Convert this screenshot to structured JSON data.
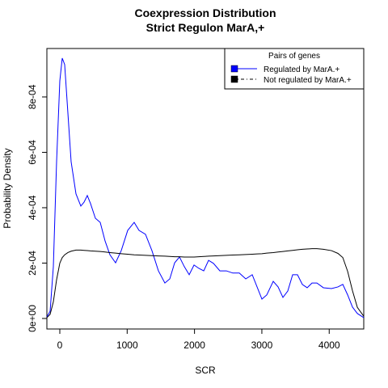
{
  "chart_data": {
    "type": "line",
    "title": "Coexpression Distribution",
    "subtitle": "Strict Regulon MarA,+",
    "x_label": "SCR",
    "y_label": "Probability Density",
    "x": [
      -192,
      -144,
      -96,
      -48,
      0,
      36,
      72,
      120,
      168,
      240,
      312,
      360,
      408,
      456,
      528,
      600,
      672,
      744,
      828,
      912,
      1008,
      1104,
      1176,
      1272,
      1368,
      1464,
      1560,
      1633,
      1705,
      1777,
      1849,
      1921,
      1993,
      2065,
      2137,
      2209,
      2281,
      2377,
      2473,
      2569,
      2665,
      2761,
      2857,
      2929,
      3001,
      3073,
      3169,
      3241,
      3313,
      3385,
      3457,
      3529,
      3601,
      3673,
      3745,
      3817,
      3914,
      4034,
      4130,
      4202,
      4274,
      4346,
      4418,
      4513
    ],
    "series": [
      {
        "name": "Regulated by  MarA.+",
        "color": "#0000ff",
        "line_style": "solid",
        "values": [
          6e-06,
          2.6e-05,
          0.000187,
          0.000566,
          0.000858,
          0.00094,
          0.000917,
          0.000742,
          0.000566,
          0.00045,
          0.000406,
          0.00042,
          0.000444,
          0.000415,
          0.000362,
          0.000347,
          0.00028,
          0.00023,
          0.000201,
          0.000245,
          0.000318,
          0.000347,
          0.000318,
          0.000304,
          0.000245,
          0.000172,
          0.000128,
          0.000143,
          0.000201,
          0.000222,
          0.000187,
          0.000158,
          0.000193,
          0.000181,
          0.000172,
          0.00021,
          0.000199,
          0.000172,
          0.000172,
          0.000164,
          0.000164,
          0.000143,
          0.000158,
          0.000114,
          7e-05,
          8.5e-05,
          0.000134,
          0.000114,
          7.6e-05,
          9.9e-05,
          0.000158,
          0.000158,
          0.000123,
          0.000111,
          0.000128,
          0.000128,
          0.000111,
          0.000108,
          0.000114,
          0.000123,
          8.5e-05,
          4.1e-05,
          1.8e-05,
          3e-06
        ]
      },
      {
        "name": "Not regulated by  MarA.+",
        "color": "#000000",
        "line_style": "dotdash",
        "values": [
          3e-06,
          1.5e-05,
          6e-05,
          0.00014,
          0.0002,
          0.00022,
          0.00023,
          0.000238,
          0.000243,
          0.000247,
          0.000247,
          0.000246,
          0.000245,
          0.000244,
          0.000243,
          0.000242,
          0.00024,
          0.000238,
          0.000236,
          0.000234,
          0.000232,
          0.00023,
          0.000229,
          0.000228,
          0.000227,
          0.000226,
          0.000225,
          0.000224,
          0.000223,
          0.000223,
          0.000222,
          0.000222,
          0.000222,
          0.000223,
          0.000224,
          0.000225,
          0.000226,
          0.000227,
          0.000228,
          0.000229,
          0.00023,
          0.000231,
          0.000232,
          0.000233,
          0.000234,
          0.000236,
          0.000238,
          0.00024,
          0.000242,
          0.000244,
          0.000246,
          0.000248,
          0.00025,
          0.000251,
          0.000252,
          0.000252,
          0.00025,
          0.000245,
          0.000235,
          0.00022,
          0.00017,
          0.0001,
          4e-05,
          8e-06
        ]
      }
    ],
    "xlim": [
      -192,
      4513
    ],
    "ylim": [
      -3.8e-05,
      0.000975
    ],
    "xticks": [
      0,
      1000,
      2000,
      3000,
      4000
    ],
    "yticks": [
      {
        "value": 0,
        "label": "0e+00"
      },
      {
        "value": 0.0002,
        "label": "2e-04"
      },
      {
        "value": 0.0004,
        "label": "4e-04"
      },
      {
        "value": 0.0006,
        "label": "6e-04"
      },
      {
        "value": 0.0008,
        "label": "8e-04"
      }
    ],
    "legend_title": "Pairs of genes",
    "legend_position": "top-right"
  }
}
